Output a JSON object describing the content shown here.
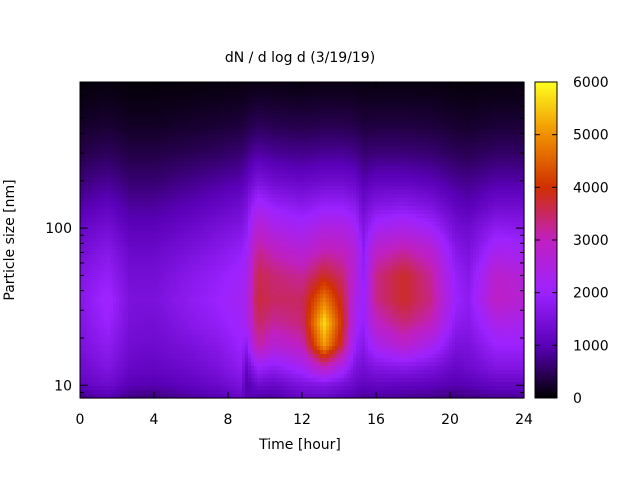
{
  "chart_data": {
    "type": "heatmap",
    "title": "dN / d log d (3/19/19)",
    "xlabel": "Time [hour]",
    "ylabel": "Particle size [nm]",
    "xlim": [
      0,
      24
    ],
    "x_ticks": [
      0,
      4,
      8,
      12,
      16,
      20,
      24
    ],
    "x_tick_labels": [
      "0",
      "4",
      "8",
      "12",
      "16",
      "20",
      "24"
    ],
    "ylim": [
      8.3,
      850
    ],
    "y_scale": "log",
    "y_ticks": [
      10,
      100
    ],
    "y_tick_labels": [
      "10",
      "100"
    ],
    "colorbar": {
      "range": [
        0,
        6000
      ],
      "ticks": [
        0,
        1000,
        2000,
        3000,
        4000,
        5000,
        6000
      ],
      "tick_labels": [
        "0",
        "1000",
        "2000",
        "3000",
        "4000",
        "5000",
        "6000"
      ],
      "palette": [
        "#000000",
        "#5a00b8",
        "#9c22ff",
        "#c020c0",
        "#d03000",
        "#f09000",
        "#ffff20"
      ]
    },
    "grid": false,
    "times": [
      0,
      1.5,
      2.7,
      4.0,
      6.0,
      7.5,
      8.7,
      9.0,
      9.6,
      10.5,
      12.0,
      13.2,
      14.2,
      14.9,
      15.3,
      16.0,
      17.5,
      19.0,
      20.3,
      21.0,
      22.5,
      24.0
    ],
    "sizes": [
      8.3,
      10,
      13,
      18,
      25,
      35,
      50,
      70,
      100,
      140,
      200,
      300,
      450,
      700,
      850
    ],
    "values": [
      [
        700,
        950,
        700,
        650,
        850,
        950,
        1200,
        1000,
        900,
        850,
        1200,
        1200,
        1000,
        900,
        800,
        850,
        800,
        750,
        650,
        700,
        800,
        800
      ],
      [
        1100,
        1300,
        1000,
        950,
        1100,
        1250,
        1500,
        900,
        1300,
        1200,
        1500,
        1600,
        1400,
        1200,
        1100,
        1150,
        1100,
        1050,
        950,
        1000,
        1150,
        1150
      ],
      [
        1300,
        1600,
        1200,
        1150,
        1300,
        1500,
        1800,
        1200,
        2000,
        1800,
        2200,
        3000,
        2300,
        1500,
        1400,
        1600,
        1700,
        1500,
        1200,
        1300,
        1600,
        1600
      ],
      [
        1500,
        1800,
        1350,
        1300,
        1500,
        1700,
        2000,
        1800,
        3200,
        2700,
        3000,
        5100,
        3600,
        1900,
        1700,
        2300,
        2800,
        2300,
        1500,
        1500,
        2000,
        2000
      ],
      [
        1600,
        2000,
        1450,
        1400,
        1700,
        1900,
        2100,
        2300,
        3500,
        3200,
        3400,
        5700,
        3900,
        2200,
        1900,
        2900,
        3400,
        3000,
        1800,
        1700,
        2400,
        2300
      ],
      [
        1700,
        2100,
        1500,
        1500,
        1800,
        2000,
        2200,
        2400,
        3700,
        3500,
        3500,
        4800,
        3700,
        2400,
        2000,
        3300,
        3800,
        3300,
        2000,
        1800,
        2900,
        2700
      ],
      [
        1600,
        1900,
        1400,
        1400,
        1700,
        1900,
        2100,
        2300,
        3600,
        3400,
        3200,
        3800,
        3400,
        2600,
        1900,
        3300,
        3800,
        3200,
        1900,
        1700,
        2800,
        2600
      ],
      [
        1400,
        1700,
        1250,
        1250,
        1500,
        1700,
        1900,
        2100,
        3300,
        3000,
        2700,
        3100,
        3000,
        2600,
        1800,
        2900,
        3200,
        2800,
        1700,
        1500,
        2300,
        2200
      ],
      [
        1200,
        1400,
        1050,
        1050,
        1250,
        1450,
        1600,
        1800,
        2800,
        2400,
        2200,
        2500,
        2500,
        2200,
        1600,
        2200,
        2400,
        2100,
        1400,
        1300,
        1800,
        1700
      ],
      [
        900,
        1100,
        850,
        850,
        1000,
        1150,
        1300,
        1500,
        2200,
        1900,
        1700,
        1900,
        1900,
        1700,
        1300,
        1600,
        1700,
        1500,
        1100,
        1000,
        1300,
        1300
      ],
      [
        650,
        800,
        600,
        600,
        750,
        850,
        950,
        1100,
        1500,
        1300,
        1200,
        1300,
        1300,
        1200,
        950,
        1100,
        1100,
        1000,
        800,
        750,
        900,
        900
      ],
      [
        400,
        500,
        380,
        380,
        450,
        520,
        600,
        700,
        900,
        800,
        750,
        800,
        800,
        750,
        600,
        650,
        650,
        600,
        480,
        450,
        550,
        550
      ],
      [
        220,
        280,
        200,
        200,
        250,
        290,
        330,
        380,
        480,
        430,
        400,
        430,
        430,
        400,
        330,
        350,
        350,
        320,
        260,
        240,
        300,
        300
      ],
      [
        100,
        130,
        90,
        90,
        110,
        130,
        150,
        170,
        210,
        190,
        170,
        190,
        190,
        180,
        150,
        160,
        160,
        150,
        120,
        110,
        130,
        130
      ],
      [
        60,
        80,
        50,
        50,
        70,
        80,
        90,
        100,
        120,
        110,
        100,
        110,
        110,
        100,
        90,
        90,
        90,
        90,
        70,
        60,
        80,
        80
      ]
    ]
  }
}
